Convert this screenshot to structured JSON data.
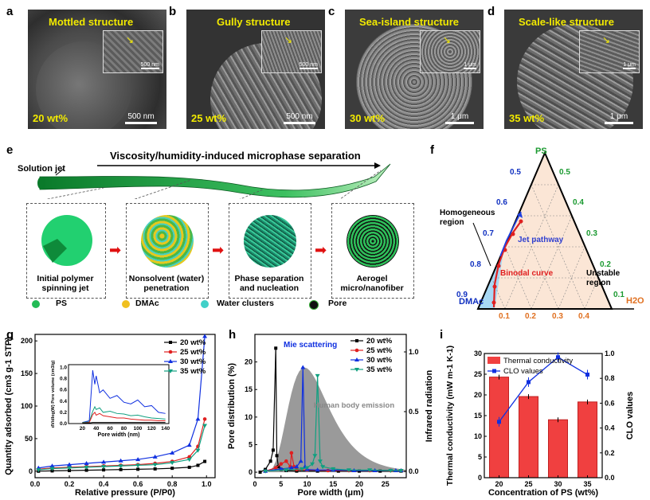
{
  "panels": {
    "a": {
      "letter": "a",
      "title": "Mottled structure",
      "wt": "20 wt%",
      "scale_main": "500 nm",
      "scale_inset": "500 nm"
    },
    "b": {
      "letter": "b",
      "title": "Gully structure",
      "wt": "25 wt%",
      "scale_main": "500 nm",
      "scale_inset": "500 nm"
    },
    "c": {
      "letter": "c",
      "title": "Sea-island structure",
      "wt": "30 wt%",
      "scale_main": "1 μm",
      "scale_inset": "1 μm"
    },
    "d": {
      "letter": "d",
      "title": "Scale-like structure",
      "wt": "35 wt%",
      "scale_main": "1 μm",
      "scale_inset": "1 μm"
    }
  },
  "schematic": {
    "letter": "e",
    "arrow_label": "Viscosity/humidity-induced microphase separation",
    "jet_label": "Solution jet",
    "stages": [
      {
        "line1": "Initial polymer",
        "line2": "spinning jet"
      },
      {
        "line1": "Nonsolvent (water)",
        "line2": "penetration"
      },
      {
        "line1": "Phase separation",
        "line2": "and nucleation"
      },
      {
        "line1": "Aerogel",
        "line2": "micro/nanofiber"
      }
    ],
    "legend": [
      {
        "label": "PS",
        "color": "#22bb55"
      },
      {
        "label": "DMAc",
        "color": "#f0c020"
      },
      {
        "label": "Water clusters",
        "color": "#40d0c8"
      },
      {
        "label": "Pore",
        "color": "#111111"
      }
    ]
  },
  "ternary": {
    "letter": "f",
    "vertex_top": "PS",
    "vertex_left": "DMAc",
    "vertex_right": "H2O",
    "left_ticks": [
      "0.5",
      "0.6",
      "0.7",
      "0.8",
      "0.9"
    ],
    "right_ticks": [
      "0.5",
      "0.4",
      "0.3",
      "0.2",
      "0.1"
    ],
    "bottom_ticks": [
      "0.1",
      "0.2",
      "0.3",
      "0.4"
    ],
    "homogeneous": "Homogeneous region",
    "jet_pathway": "Jet pathway",
    "binodal": "Binodal curve",
    "unstable": "Unstable region"
  },
  "chart_data": [
    {
      "id": "g",
      "type": "line",
      "title": "",
      "xlabel": "Relative pressure (P/P0)",
      "ylabel": "Quantity adsorbed (cm3 g-1 STP)",
      "xlim": [
        0,
        1.05
      ],
      "ylim": [
        -10,
        210
      ],
      "xticks": [
        "0.0",
        "0.2",
        "0.4",
        "0.6",
        "0.8",
        "1.0"
      ],
      "yticks": [
        "0",
        "50",
        "100",
        "150",
        "200"
      ],
      "series": [
        {
          "name": "20 wt%",
          "color": "#000000",
          "marker": "square",
          "x": [
            0.02,
            0.1,
            0.2,
            0.3,
            0.4,
            0.5,
            0.6,
            0.7,
            0.8,
            0.9,
            0.95,
            0.99
          ],
          "y": [
            0,
            0.5,
            1,
            1.5,
            2,
            2.5,
            3,
            3.5,
            4.5,
            6,
            9,
            15
          ]
        },
        {
          "name": "25 wt%",
          "color": "#e02020",
          "marker": "circle",
          "x": [
            0.02,
            0.1,
            0.2,
            0.3,
            0.4,
            0.5,
            0.6,
            0.7,
            0.8,
            0.9,
            0.95,
            0.99
          ],
          "y": [
            3,
            5,
            6,
            7,
            8,
            9,
            10,
            12,
            15,
            22,
            38,
            80
          ]
        },
        {
          "name": "30 wt%",
          "color": "#1030e0",
          "marker": "triangle",
          "x": [
            0.02,
            0.1,
            0.2,
            0.3,
            0.4,
            0.5,
            0.6,
            0.7,
            0.8,
            0.9,
            0.95,
            0.99
          ],
          "y": [
            5,
            8,
            10,
            12,
            14,
            16,
            18,
            22,
            28,
            40,
            80,
            207
          ]
        },
        {
          "name": "35 wt%",
          "color": "#10a080",
          "marker": "triangle-down",
          "x": [
            0.02,
            0.1,
            0.2,
            0.3,
            0.4,
            0.5,
            0.6,
            0.7,
            0.8,
            0.9,
            0.95,
            0.99
          ],
          "y": [
            2,
            4,
            5,
            6,
            7,
            8,
            9,
            10,
            13,
            18,
            32,
            70
          ]
        }
      ],
      "inset": {
        "xlabel": "Pore width (nm)",
        "ylabel": "dV/dlog(W) Pore volume (cm3/g)",
        "xticks": [
          "20",
          "40",
          "60",
          "80",
          "100",
          "120",
          "140"
        ],
        "yticks": [
          "0.0",
          "0.2",
          "0.4",
          "0.6",
          "0.8",
          "1.0"
        ],
        "xlim": [
          0,
          145
        ],
        "ylim": [
          0,
          1.05
        ]
      }
    },
    {
      "id": "h",
      "type": "line",
      "xlabel": "Pore width (μm)",
      "ylabel": "Pore distribution (%)",
      "y2label": "Infrared radiation",
      "xlim": [
        0,
        29
      ],
      "ylim": [
        -1,
        25
      ],
      "xticks": [
        "0",
        "5",
        "10",
        "15",
        "20",
        "25"
      ],
      "yticks": [
        "0",
        "5",
        "10",
        "15",
        "20"
      ],
      "y2ticks": [
        "0.0",
        "0.5",
        "1.0"
      ],
      "annotations": [
        "Mie scattering",
        "Human body emission"
      ],
      "series": [
        {
          "name": "20 wt%",
          "color": "#000000",
          "x": [
            1,
            2,
            3,
            3.5,
            4,
            4.2,
            4.5,
            5,
            6,
            8,
            12,
            16,
            20,
            24,
            28
          ],
          "y": [
            0,
            0.5,
            2,
            4,
            22.5,
            3,
            1,
            0.5,
            0.3,
            0.2,
            0.2,
            0.2,
            0.2,
            0.2,
            0.2
          ]
        },
        {
          "name": "25 wt%",
          "color": "#e02020",
          "x": [
            2,
            4,
            5,
            6,
            6.8,
            7,
            7.5,
            8,
            10,
            14,
            18,
            22,
            26,
            28
          ],
          "y": [
            0.2,
            0.8,
            1.5,
            2,
            1,
            3.5,
            1,
            0.5,
            0.4,
            0.3,
            0.3,
            0.3,
            0.3,
            0.3
          ]
        },
        {
          "name": "30 wt%",
          "color": "#1030e0",
          "x": [
            2,
            5,
            7,
            8,
            8.8,
            9.2,
            9.6,
            10,
            12,
            15,
            19,
            23,
            27,
            28
          ],
          "y": [
            0.2,
            0.6,
            0.8,
            1,
            2,
            19,
            1,
            0.5,
            0.4,
            0.4,
            0.3,
            0.3,
            0.3,
            0.3
          ]
        },
        {
          "name": "35 wt%",
          "color": "#10a080",
          "x": [
            2,
            6,
            9,
            10,
            11,
            11.5,
            12,
            12.5,
            13,
            15,
            18,
            22,
            26,
            28
          ],
          "y": [
            0.2,
            0.4,
            0.6,
            0.8,
            1.5,
            3,
            17.5,
            2,
            1,
            0.6,
            0.4,
            0.4,
            0.3,
            0.3
          ]
        }
      ]
    },
    {
      "id": "i",
      "type": "bar",
      "categories": [
        "20",
        "25",
        "30",
        "35"
      ],
      "xlabel": "Concentration of PS (wt%)",
      "ylabel": "Thermal conductivity (mW m-1 K-1)",
      "y2label": "CLO values",
      "ylim": [
        0,
        30
      ],
      "y2lim": [
        0,
        1.0
      ],
      "yticks": [
        "0",
        "5",
        "10",
        "15",
        "20",
        "25",
        "30"
      ],
      "y2ticks": [
        "0.0",
        "0.2",
        "0.4",
        "0.6",
        "0.8",
        "1.0"
      ],
      "series": [
        {
          "name": "Thermal conductivity",
          "type": "bar",
          "color": "#f04040",
          "values": [
            24.3,
            19.6,
            14.0,
            18.3
          ]
        },
        {
          "name": "CLO values",
          "type": "line",
          "color": "#1030e0",
          "values": [
            0.45,
            0.77,
            0.97,
            0.83
          ]
        }
      ]
    }
  ]
}
